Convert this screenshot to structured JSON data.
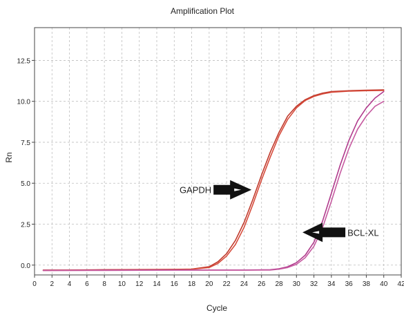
{
  "chart_data": {
    "type": "line",
    "title": "Amplification Plot",
    "xlabel": "Cycle",
    "ylabel": "Rn",
    "xlim": [
      0,
      42
    ],
    "ylim": [
      -0.6,
      14.5
    ],
    "x_ticks": [
      0,
      2,
      4,
      6,
      8,
      10,
      12,
      14,
      16,
      18,
      20,
      22,
      24,
      26,
      28,
      30,
      32,
      34,
      36,
      38,
      40,
      42
    ],
    "y_ticks": [
      0.0,
      2.5,
      5.0,
      7.5,
      10.0,
      12.5
    ],
    "y_tick_labels": [
      "0.0",
      "2.5",
      "5.0",
      "7.5",
      "10.0",
      "12.5"
    ],
    "grid": true,
    "series": [
      {
        "color": "#c0392b",
        "x": [
          1,
          4,
          8,
          12,
          16,
          18,
          20,
          21,
          22,
          23,
          24,
          25,
          26,
          27,
          28,
          29,
          30,
          31,
          32,
          33,
          34,
          36,
          38,
          40
        ],
        "values": [
          -0.3,
          -0.3,
          -0.28,
          -0.27,
          -0.26,
          -0.24,
          -0.1,
          0.2,
          0.7,
          1.5,
          2.6,
          4.0,
          5.5,
          6.9,
          8.1,
          9.1,
          9.7,
          10.1,
          10.35,
          10.5,
          10.6,
          10.65,
          10.68,
          10.7
        ]
      },
      {
        "color": "#d64a3a",
        "x": [
          1,
          4,
          8,
          12,
          16,
          18,
          20,
          21,
          22,
          23,
          24,
          25,
          26,
          27,
          28,
          29,
          30,
          31,
          32,
          33,
          34,
          36,
          38,
          40
        ],
        "values": [
          -0.32,
          -0.31,
          -0.29,
          -0.28,
          -0.27,
          -0.25,
          -0.15,
          0.1,
          0.55,
          1.25,
          2.3,
          3.7,
          5.2,
          6.6,
          7.9,
          8.9,
          9.6,
          10.05,
          10.3,
          10.45,
          10.55,
          10.62,
          10.65,
          10.66
        ]
      },
      {
        "color": "#b03a8c",
        "x": [
          1,
          8,
          16,
          20,
          24,
          27,
          28,
          29,
          30,
          31,
          32,
          33,
          34,
          35,
          36,
          37,
          38,
          39,
          40
        ],
        "values": [
          -0.32,
          -0.31,
          -0.3,
          -0.3,
          -0.3,
          -0.28,
          -0.22,
          -0.1,
          0.15,
          0.6,
          1.4,
          2.7,
          4.4,
          6.1,
          7.6,
          8.8,
          9.6,
          10.2,
          10.6
        ]
      },
      {
        "color": "#c65aa0",
        "x": [
          1,
          8,
          16,
          20,
          24,
          27,
          28,
          29,
          30,
          31,
          32,
          33,
          34,
          35,
          36,
          37,
          38,
          39,
          40
        ],
        "values": [
          -0.33,
          -0.32,
          -0.31,
          -0.31,
          -0.31,
          -0.3,
          -0.25,
          -0.15,
          0.05,
          0.45,
          1.15,
          2.3,
          3.9,
          5.6,
          7.1,
          8.3,
          9.1,
          9.7,
          10.0
        ]
      }
    ],
    "annotations": [
      {
        "text": "GAPDH",
        "x": 20.5,
        "y": 4.6,
        "arrow": "right"
      },
      {
        "text": "BCL-XL",
        "x": 35.6,
        "y": 2.0,
        "arrow": "left"
      }
    ]
  }
}
